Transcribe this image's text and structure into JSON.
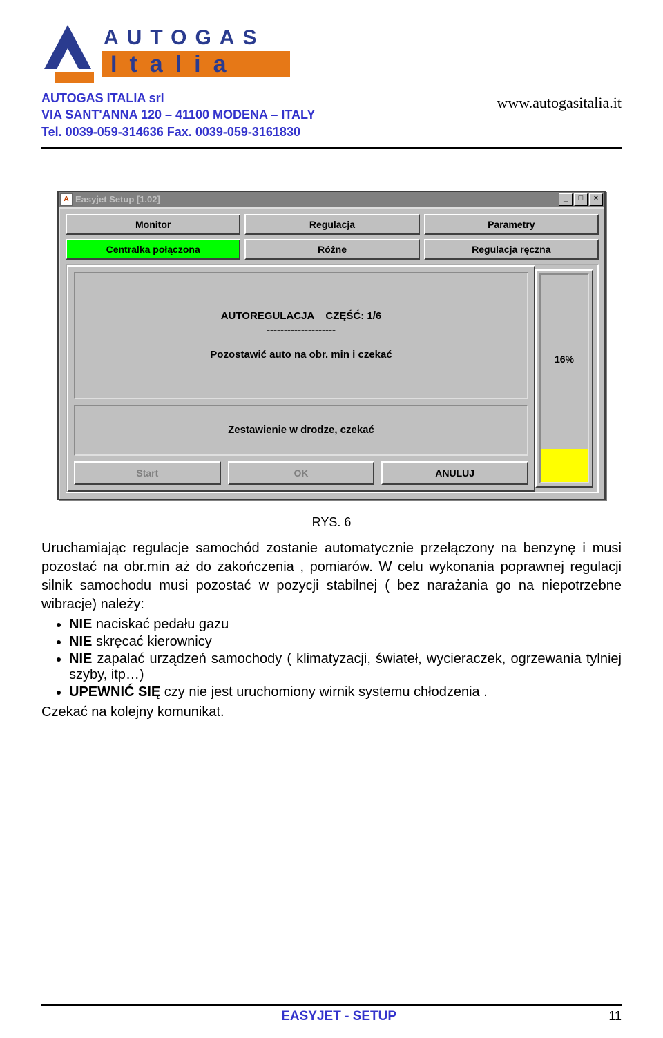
{
  "header": {
    "logo_text_top": "AUTOGAS",
    "logo_text_bottom": "Italia",
    "brand_blue": "#2a3b8f",
    "brand_orange": "#e67817",
    "company_line1": "AUTOGAS ITALIA srl",
    "company_line2": "VIA SANT'ANNA 120 – 41100 MODENA – ITALY",
    "company_line3": "Tel. 0039-059-314636  Fax. 0039-059-3161830",
    "website": "www.autogasitalia.it"
  },
  "screenshot": {
    "title": "Easyjet Setup [1.02]",
    "tabs_row1": [
      "Monitor",
      "Regulacja",
      "Parametry"
    ],
    "tabs_row2": [
      "Centralka połączona",
      "Różne",
      "Regulacja ręczna"
    ],
    "connected_index": 0,
    "msg_title": "AUTOREGULACJA _ CZĘŚĆ: 1/6",
    "msg_dashes": "--------------------",
    "msg_body": "Pozostawić auto na obr. min i czekać",
    "status_text": "Zestawienie w drodze, czekać",
    "buttons": {
      "start": "Start",
      "ok": "OK",
      "cancel": "ANULUJ"
    },
    "progress_percent": 16,
    "progress_label": "16%",
    "bg_color": "#c0c0c0",
    "highlight_color": "#00ff00",
    "gauge_fill_color": "#ffff00"
  },
  "caption": "RYS. 6",
  "body": {
    "p1": "Uruchamiając regulacje samochód zostanie automatycznie przełączony na benzynę i musi pozostać na obr.min aż do zakończenia ,  pomiarów.  W celu wykonania poprawnej regulacji silnik samochodu musi pozostać w pozycji stabilnej ( bez narażania go na niepotrzebne wibracje) należy:",
    "bullets": [
      {
        "bold": "NIE",
        "rest": " naciskać pedału gazu"
      },
      {
        "bold": "NIE",
        "rest": " skręcać kierownicy"
      },
      {
        "bold": "NIE",
        "rest": " zapalać urządzeń samochody ( klimatyzacji, świateł, wycieraczek, ogrzewania tylniej szyby, itp…)"
      },
      {
        "bold": "UPEWNIĆ SIĘ",
        "rest": " czy nie jest uruchomiony wirnik systemu chłodzenia ."
      }
    ],
    "p2": "Czekać na kolejny komunikat."
  },
  "footer": {
    "center": "EASYJET - SETUP",
    "page_number": "11"
  }
}
